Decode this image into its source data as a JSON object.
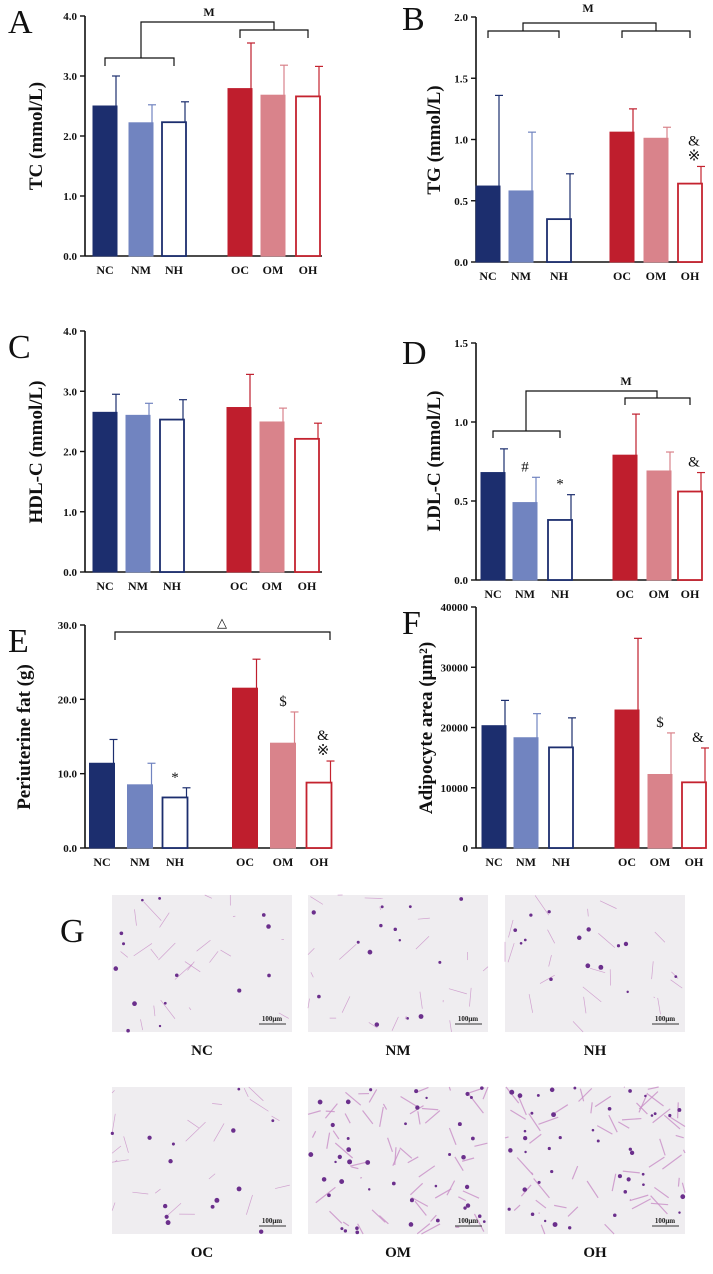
{
  "colors": {
    "nc": "#1c2e6e",
    "nm": "#7184c0",
    "nh_edge": "#1c2e6e",
    "oc": "#bf1e2d",
    "om": "#d9838b",
    "oh_edge": "#c4232f",
    "axis": "#111111",
    "tissue_bg": "#efedf0",
    "cell_wall": "#c98fc7",
    "nuclei": "#6b2f8c"
  },
  "chart_data": [
    {
      "type": "bar",
      "panel": "A",
      "title": "",
      "xlabel": "",
      "ylabel": "TC (mmol/L)",
      "ylim": [
        0,
        4
      ],
      "yticks": [
        "0.0",
        "1.0",
        "2.0",
        "3.0",
        "4.0"
      ],
      "categories": [
        "NC",
        "NM",
        "NH",
        "OC",
        "OM",
        "OH"
      ],
      "values": [
        2.5,
        2.22,
        2.23,
        2.79,
        2.68,
        2.66
      ],
      "errors": [
        0.5,
        0.3,
        0.34,
        0.76,
        0.5,
        0.5
      ],
      "point_marks": [
        "",
        "",
        "",
        "",
        "",
        ""
      ],
      "bracket_label": "M"
    },
    {
      "type": "bar",
      "panel": "B",
      "title": "",
      "xlabel": "",
      "ylabel": "TG (mmol/L)",
      "ylim": [
        0,
        2
      ],
      "yticks": [
        "0.0",
        "0.5",
        "1.0",
        "1.5",
        "2.0"
      ],
      "categories": [
        "NC",
        "NM",
        "NH",
        "OC",
        "OM",
        "OH"
      ],
      "values": [
        0.62,
        0.58,
        0.35,
        1.06,
        1.01,
        0.64
      ],
      "errors": [
        0.74,
        0.48,
        0.37,
        0.19,
        0.09,
        0.14
      ],
      "point_marks": [
        "",
        "",
        "",
        "",
        "",
        "&\n※"
      ],
      "bracket_label": "M"
    },
    {
      "type": "bar",
      "panel": "C",
      "title": "",
      "xlabel": "",
      "ylabel": "HDL-C (mmol/L)",
      "ylim": [
        0,
        4
      ],
      "yticks": [
        "0.0",
        "1.0",
        "2.0",
        "3.0",
        "4.0"
      ],
      "categories": [
        "NC",
        "NM",
        "NH",
        "OC",
        "OM",
        "OH"
      ],
      "values": [
        2.65,
        2.6,
        2.53,
        2.73,
        2.49,
        2.21
      ],
      "errors": [
        0.3,
        0.2,
        0.33,
        0.55,
        0.23,
        0.26
      ],
      "point_marks": [
        "",
        "",
        "",
        "",
        "",
        ""
      ],
      "bracket_label": ""
    },
    {
      "type": "bar",
      "panel": "D",
      "title": "",
      "xlabel": "",
      "ylabel": "LDL-C (mmol/L)",
      "ylim": [
        0,
        1.5
      ],
      "yticks": [
        "0.0",
        "0.5",
        "1.0",
        "1.5"
      ],
      "categories": [
        "NC",
        "NM",
        "NH",
        "OC",
        "OM",
        "OH"
      ],
      "values": [
        0.68,
        0.49,
        0.38,
        0.79,
        0.69,
        0.56
      ],
      "errors": [
        0.15,
        0.16,
        0.16,
        0.26,
        0.12,
        0.12
      ],
      "point_marks": [
        "",
        "#",
        "*",
        "",
        "",
        "&"
      ],
      "bracket_label": "M"
    },
    {
      "type": "bar",
      "panel": "E",
      "title": "",
      "xlabel": "",
      "ylabel": "Periuterine fat (g)",
      "ylim": [
        0,
        30
      ],
      "yticks": [
        "0.0",
        "10.0",
        "20.0",
        "30.0"
      ],
      "categories": [
        "NC",
        "NM",
        "NH",
        "OC",
        "OM",
        "OH"
      ],
      "values": [
        11.4,
        8.5,
        6.8,
        21.5,
        14.1,
        8.8
      ],
      "errors": [
        3.2,
        2.9,
        1.3,
        3.9,
        4.2,
        2.9
      ],
      "point_marks": [
        "",
        "",
        "*",
        "",
        "$",
        "&\n※"
      ],
      "bracket_label": "△"
    },
    {
      "type": "bar",
      "panel": "F",
      "title": "",
      "xlabel": "",
      "ylabel": "Adipocyte area (μm²)",
      "ylim": [
        0,
        40000
      ],
      "yticks": [
        "0",
        "10000",
        "20000",
        "30000",
        "40000"
      ],
      "categories": [
        "NC",
        "NM",
        "NH",
        "OC",
        "OM",
        "OH"
      ],
      "values": [
        20300,
        18300,
        16700,
        22900,
        12200,
        10900
      ],
      "errors": [
        4200,
        4000,
        4900,
        11900,
        6900,
        5700
      ],
      "point_marks": [
        "",
        "",
        "",
        "",
        "$",
        "&"
      ],
      "bracket_label": ""
    }
  ],
  "histology": {
    "panel_label": "G",
    "scale_bar": "100μm",
    "images": [
      {
        "label": "NC"
      },
      {
        "label": "NM"
      },
      {
        "label": "NH"
      },
      {
        "label": "OC"
      },
      {
        "label": "OM"
      },
      {
        "label": "OH"
      }
    ]
  }
}
